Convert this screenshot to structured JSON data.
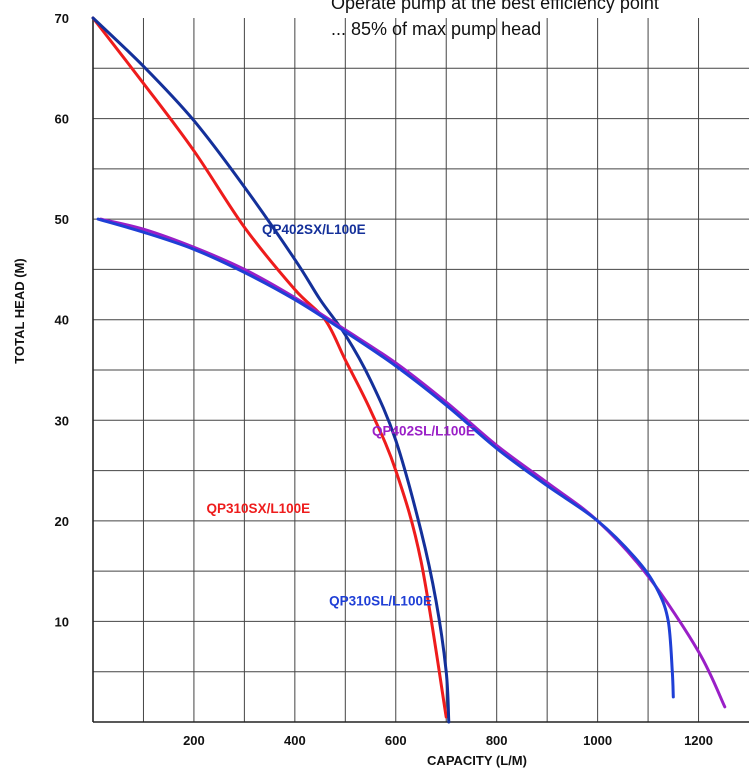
{
  "annotation": {
    "line1": "Operate pump at the best efficiency point",
    "line2": "... 85% of max pump head"
  },
  "chart_data": {
    "type": "line",
    "title": "",
    "xlabel": "CAPACITY (L/M)",
    "ylabel": "TOTAL HEAD (M)",
    "xlim": [
      0,
      1300
    ],
    "ylim": [
      0,
      70
    ],
    "x_ticks": [
      200,
      400,
      600,
      800,
      1000,
      1200
    ],
    "y_ticks": [
      10,
      20,
      30,
      40,
      50,
      60,
      70
    ],
    "grid": true,
    "series": [
      {
        "name": "QP310SX/L100E",
        "color": "#ee1c1c",
        "points": [
          [
            0,
            70
          ],
          [
            100,
            63.5
          ],
          [
            200,
            56.8
          ],
          [
            300,
            49.2
          ],
          [
            400,
            43
          ],
          [
            460,
            40
          ],
          [
            500,
            36
          ],
          [
            550,
            31
          ],
          [
            600,
            25
          ],
          [
            650,
            16
          ],
          [
            700,
            0.5
          ]
        ],
        "label_at": [
          225,
          20.8
        ]
      },
      {
        "name": "QP402SX/L100E",
        "color": "#14309a",
        "points": [
          [
            0,
            70
          ],
          [
            100,
            65.2
          ],
          [
            200,
            59.8
          ],
          [
            300,
            53.2
          ],
          [
            400,
            46
          ],
          [
            450,
            42
          ],
          [
            500,
            38.5
          ],
          [
            550,
            34
          ],
          [
            600,
            28
          ],
          [
            650,
            19
          ],
          [
            680,
            12
          ],
          [
            700,
            5
          ],
          [
            705,
            0
          ]
        ],
        "label_at": [
          335,
          48.5
        ]
      },
      {
        "name": "QP402SL/L100E",
        "color": "#9a1fc7",
        "points": [
          [
            15,
            50
          ],
          [
            100,
            49
          ],
          [
            200,
            47.2
          ],
          [
            300,
            45
          ],
          [
            400,
            42.2
          ],
          [
            500,
            39
          ],
          [
            600,
            35.7
          ],
          [
            700,
            31.8
          ],
          [
            800,
            27.5
          ],
          [
            900,
            23.8
          ],
          [
            1000,
            20
          ],
          [
            1100,
            14.5
          ],
          [
            1200,
            7
          ],
          [
            1252,
            1.5
          ]
        ],
        "label_at": [
          553,
          28.5
        ]
      },
      {
        "name": "QP310SL/L100E",
        "color": "#1f3fd6",
        "points": [
          [
            10,
            50
          ],
          [
            100,
            48.7
          ],
          [
            200,
            47
          ],
          [
            300,
            44.7
          ],
          [
            400,
            42
          ],
          [
            500,
            38.8
          ],
          [
            600,
            35.4
          ],
          [
            700,
            31.5
          ],
          [
            800,
            27.2
          ],
          [
            900,
            23.5
          ],
          [
            1000,
            20
          ],
          [
            1080,
            16
          ],
          [
            1120,
            13
          ],
          [
            1140,
            10
          ],
          [
            1148,
            5
          ],
          [
            1150,
            2.5
          ]
        ],
        "label_at": [
          468,
          11.6
        ]
      }
    ]
  }
}
